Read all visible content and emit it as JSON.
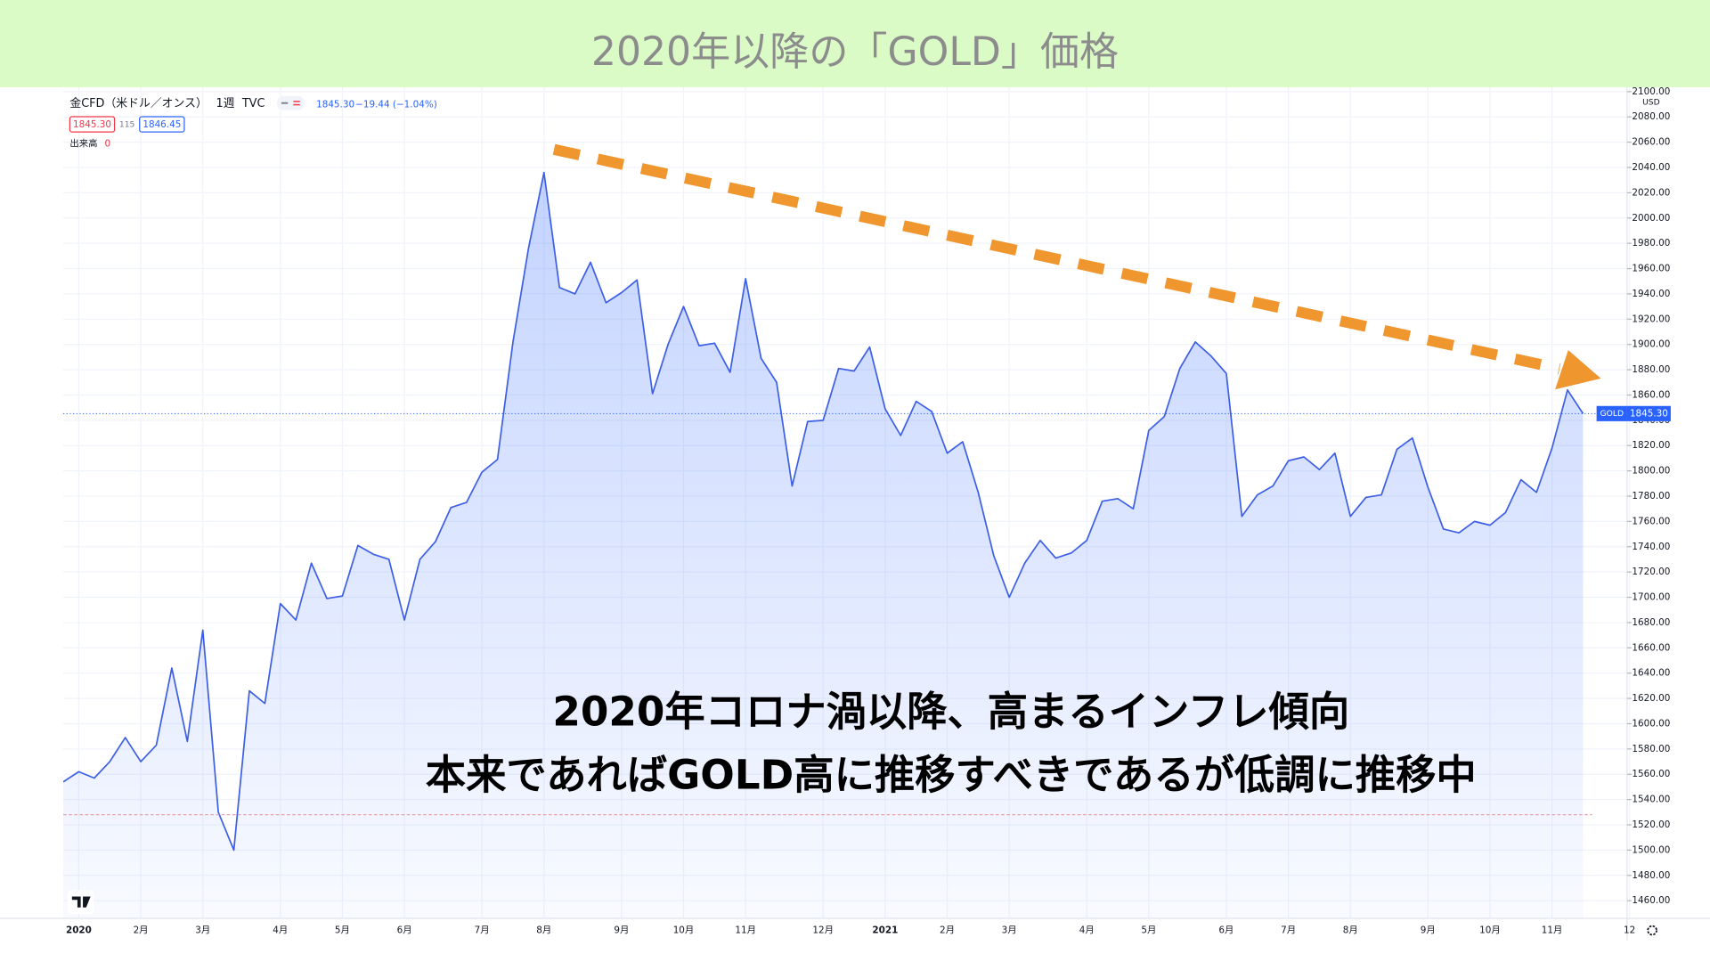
{
  "chart_data": {
    "type": "line",
    "title": "2020年以降の「GOLD」価格",
    "header": {
      "symbol": "金CFD（米ドル／オンス）",
      "interval": "1週",
      "source": "TVC",
      "last": "1845.30",
      "change": "−19.44 (−1.04%)",
      "bid": "1845.30",
      "spread": "115",
      "ask": "1846.45",
      "volume_label": "出来高",
      "volume": 0
    },
    "currency": "USD",
    "price_label": {
      "symbol": "GOLD",
      "value": 1845.3,
      "label": "1845.30"
    },
    "lower_line": 1528,
    "annotations": [
      "2020年コロナ渦以降、高まるインフレ傾向",
      "本来であればGOLD高に推移すべきであるが低調に推移中"
    ],
    "color": "#3d5fe6",
    "categories": [
      null,
      "2020",
      null,
      null,
      null,
      "2月",
      null,
      null,
      null,
      "3月",
      null,
      null,
      null,
      null,
      "4月",
      null,
      null,
      null,
      "5月",
      null,
      null,
      null,
      "6月",
      null,
      null,
      null,
      null,
      "7月",
      null,
      null,
      null,
      "8月",
      null,
      null,
      null,
      null,
      "9月",
      null,
      null,
      null,
      "10月",
      null,
      null,
      null,
      "11月",
      null,
      null,
      null,
      null,
      "12月",
      null,
      null,
      null,
      "2021",
      null,
      null,
      null,
      "2月",
      null,
      null,
      null,
      "3月",
      null,
      null,
      null,
      null,
      "4月",
      null,
      null,
      null,
      "5月",
      null,
      null,
      null,
      null,
      "6月",
      null,
      null,
      null,
      "7月",
      null,
      null,
      null,
      "8月",
      null,
      null,
      null,
      null,
      "9月",
      null,
      null,
      null,
      "10月",
      null,
      null,
      null,
      "11月",
      null,
      null,
      null,
      null,
      "12"
    ],
    "values": [
      1554,
      1562,
      1557,
      1570,
      1589,
      1570,
      1583,
      1644,
      1586,
      1674,
      1530,
      1500,
      1626,
      1616,
      1695,
      1682,
      1727,
      1699,
      1701,
      1741,
      1734,
      1730,
      1682,
      1730,
      1744,
      1771,
      1775,
      1799,
      1809,
      1902,
      1976,
      2036,
      1945,
      1940,
      1965,
      1933,
      1941,
      1951,
      1861,
      1900,
      1930,
      1899,
      1901,
      1878,
      1952,
      1889,
      1870,
      1788,
      1839,
      1840,
      1881,
      1879,
      1898,
      1849,
      1828,
      1855,
      1847,
      1814,
      1823,
      1783,
      1733,
      1700,
      1727,
      1745,
      1731,
      1735,
      1745,
      1776,
      1778,
      1770,
      1832,
      1843,
      1881,
      1902,
      1891,
      1877,
      1764,
      1781,
      1788,
      1808,
      1811,
      1801,
      1814,
      1764,
      1779,
      1781,
      1817,
      1826,
      1787,
      1754,
      1751,
      1760,
      1757,
      1767,
      1793,
      1783,
      1818,
      1864,
      1845.3,
      null,
      null,
      null
    ],
    "ylim": [
      1446,
      2100
    ],
    "yticks": [
      {
        "value": 1460,
        "label": "1460.00"
      },
      {
        "value": 1480,
        "label": "1480.00"
      },
      {
        "value": 1500,
        "label": "1500.00"
      },
      {
        "value": 1520,
        "label": "1520.00"
      },
      {
        "value": 1540,
        "label": "1540.00"
      },
      {
        "value": 1560,
        "label": "1560.00"
      },
      {
        "value": 1580,
        "label": "1580.00"
      },
      {
        "value": 1600,
        "label": "1600.00"
      },
      {
        "value": 1620,
        "label": "1620.00"
      },
      {
        "value": 1640,
        "label": "1640.00"
      },
      {
        "value": 1660,
        "label": "1660.00"
      },
      {
        "value": 1680,
        "label": "1680.00"
      },
      {
        "value": 1700,
        "label": "1700.00"
      },
      {
        "value": 1720,
        "label": "1720.00"
      },
      {
        "value": 1740,
        "label": "1740.00"
      },
      {
        "value": 1760,
        "label": "1760.00"
      },
      {
        "value": 1780,
        "label": "1780.00"
      },
      {
        "value": 1800,
        "label": "1800.00"
      },
      {
        "value": 1820,
        "label": "1820.00"
      },
      {
        "value": 1840,
        "label": "1840.00"
      },
      {
        "value": 1860,
        "label": "1860.00"
      },
      {
        "value": 1880,
        "label": "1880.00"
      },
      {
        "value": 1900,
        "label": "1900.00"
      },
      {
        "value": 1920,
        "label": "1920.00"
      },
      {
        "value": 1940,
        "label": "1940.00"
      },
      {
        "value": 1960,
        "label": "1960.00"
      },
      {
        "value": 1980,
        "label": "1980.00"
      },
      {
        "value": 2000,
        "label": "2000.00"
      },
      {
        "value": 2020,
        "label": "2020.00"
      },
      {
        "value": 2040,
        "label": "2040.00"
      },
      {
        "value": 2060,
        "label": "2060.00"
      },
      {
        "value": 2080,
        "label": "2080.00"
      },
      {
        "value": 2100,
        "label": "2100.00"
      }
    ],
    "grid": true
  }
}
